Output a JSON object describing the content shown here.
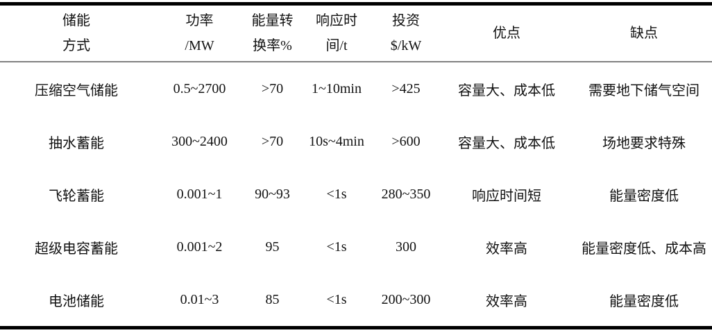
{
  "table": {
    "title_semantic": "energy-storage-comparison-table",
    "colors": {
      "rule_heavy": "#000000",
      "rule_light": "#808080",
      "text": "#111111",
      "background": "#ffffff"
    },
    "headers": [
      {
        "line1": "储能",
        "line2": "方式"
      },
      {
        "line1": "功率",
        "line2": "/MW"
      },
      {
        "line1": "能量转",
        "line2": "换率%"
      },
      {
        "line1": "响应时",
        "line2": "间/t"
      },
      {
        "line1": "投资",
        "line2": "$/kW"
      },
      {
        "line1": "优点"
      },
      {
        "line1": "缺点"
      }
    ],
    "rows": [
      {
        "cells": [
          "压缩空气储能",
          "0.5~2700",
          ">70",
          "1~10min",
          ">425",
          "容量大、成本低",
          "需要地下储气空间"
        ]
      },
      {
        "cells": [
          "抽水蓄能",
          "300~2400",
          ">70",
          "10s~4min",
          ">600",
          "容量大、成本低",
          "场地要求特殊"
        ]
      },
      {
        "cells": [
          "飞轮蓄能",
          "0.001~1",
          "90~93",
          "<1s",
          "280~350",
          "响应时间短",
          "能量密度低"
        ]
      },
      {
        "cells": [
          "超级电容蓄能",
          "0.001~2",
          "95",
          "<1s",
          "300",
          "效率高",
          "能量密度低、成本高"
        ]
      },
      {
        "cells": [
          "电池储能",
          "0.01~3",
          "85",
          "<1s",
          "200~300",
          "效率高",
          "能量密度低"
        ]
      }
    ]
  },
  "chart_data": {
    "type": "table",
    "columns": [
      "储能方式",
      "功率/MW",
      "能量转换率%",
      "响应时间/t",
      "投资$/kW",
      "优点",
      "缺点"
    ],
    "rows": [
      [
        "压缩空气储能",
        "0.5~2700",
        ">70",
        "1~10min",
        ">425",
        "容量大、成本低",
        "需要地下储气空间"
      ],
      [
        "抽水蓄能",
        "300~2400",
        ">70",
        "10s~4min",
        ">600",
        "容量大、成本低",
        "场地要求特殊"
      ],
      [
        "飞轮蓄能",
        "0.001~1",
        "90~93",
        "<1s",
        "280~350",
        "响应时间短",
        "能量密度低"
      ],
      [
        "超级电容蓄能",
        "0.001~2",
        "95",
        "<1s",
        "300",
        "效率高",
        "能量密度低、成本高"
      ],
      [
        "电池储能",
        "0.01~3",
        "85",
        "<1s",
        "200~300",
        "效率高",
        "能量密度低"
      ]
    ]
  }
}
